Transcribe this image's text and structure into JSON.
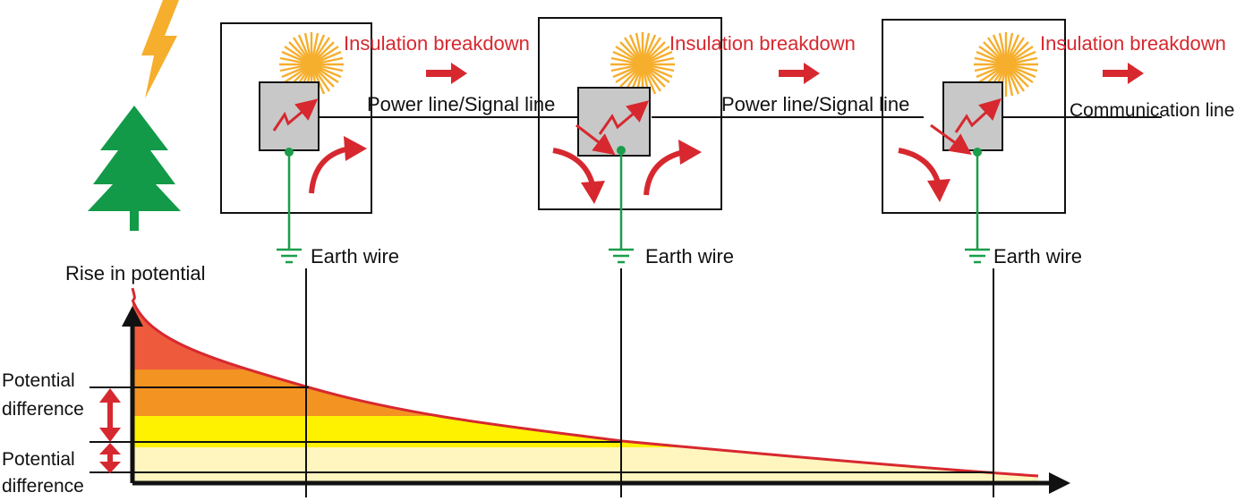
{
  "labels": {
    "insulation_breakdown": "Insulation breakdown",
    "power_signal_line": "Power line/Signal line",
    "communication_line": "Communication line",
    "earth_wire": "Earth wire",
    "rise_in_potential": "Rise in potential",
    "potential": "Potential",
    "difference": "difference"
  },
  "colors": {
    "accent_red": "#d7282f",
    "earth_green": "#1a9e4a",
    "tree_green": "#129a48",
    "lightning": "#f6ae2d",
    "burst": "#f6ae2d",
    "device_gray": "#c8c8c8",
    "band_red": "#ee5a3c",
    "band_orange": "#f39322",
    "band_yellow": "#fff200",
    "band_pale": "#fff6bf"
  },
  "icons": [
    "lightning-icon",
    "tree-icon",
    "burst-icon",
    "ground-icon",
    "arrow-icon"
  ]
}
